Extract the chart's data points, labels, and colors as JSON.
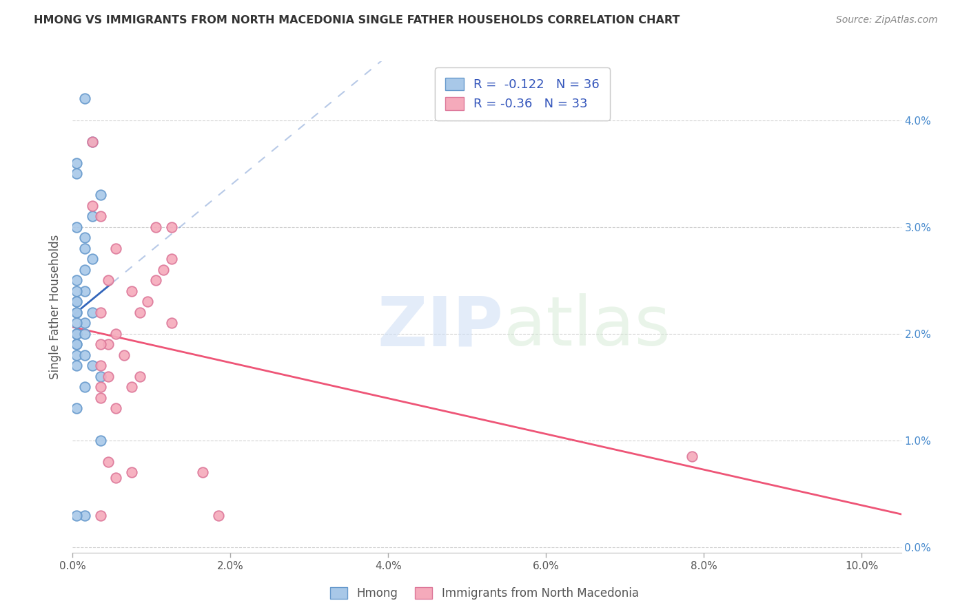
{
  "title": "HMONG VS IMMIGRANTS FROM NORTH MACEDONIA SINGLE FATHER HOUSEHOLDS CORRELATION CHART",
  "source": "Source: ZipAtlas.com",
  "ylabel": "Single Father Households",
  "xlim": [
    0.0,
    0.105
  ],
  "ylim": [
    -0.0005,
    0.0455
  ],
  "yticks": [
    0.0,
    0.01,
    0.02,
    0.03,
    0.04
  ],
  "ytick_labels": [
    "0.0%",
    "1.0%",
    "2.0%",
    "3.0%",
    "4.0%"
  ],
  "xticks": [
    0.0,
    0.02,
    0.04,
    0.06,
    0.08,
    0.1
  ],
  "xtick_labels": [
    "0.0%",
    "2.0%",
    "4.0%",
    "6.0%",
    "8.0%",
    "10.0%"
  ],
  "watermark_zip": "ZIP",
  "watermark_atlas": "atlas",
  "hmong_color": "#a8c8e8",
  "hmong_edge_color": "#6699cc",
  "macedonia_color": "#f5aabb",
  "macedonia_edge_color": "#dd7799",
  "line_hmong_color": "#3366bb",
  "line_macedonia_color": "#ee5577",
  "R_hmong": -0.122,
  "N_hmong": 36,
  "R_macedonia": -0.36,
  "N_macedonia": 33,
  "hmong_x": [
    0.0015,
    0.0025,
    0.0005,
    0.0005,
    0.0035,
    0.0025,
    0.0005,
    0.0015,
    0.0015,
    0.0025,
    0.0015,
    0.0005,
    0.0015,
    0.0005,
    0.0005,
    0.0005,
    0.0005,
    0.0025,
    0.0005,
    0.0015,
    0.0005,
    0.0005,
    0.0005,
    0.0015,
    0.0005,
    0.0005,
    0.0005,
    0.0015,
    0.0025,
    0.0005,
    0.0035,
    0.0015,
    0.0005,
    0.0035,
    0.0015,
    0.0005
  ],
  "hmong_y": [
    0.042,
    0.038,
    0.036,
    0.035,
    0.033,
    0.031,
    0.03,
    0.029,
    0.028,
    0.027,
    0.026,
    0.025,
    0.024,
    0.024,
    0.023,
    0.023,
    0.022,
    0.022,
    0.022,
    0.021,
    0.021,
    0.02,
    0.02,
    0.02,
    0.019,
    0.019,
    0.018,
    0.018,
    0.017,
    0.017,
    0.016,
    0.015,
    0.013,
    0.01,
    0.003,
    0.003
  ],
  "macedonia_x": [
    0.0025,
    0.0025,
    0.0035,
    0.0105,
    0.0125,
    0.0055,
    0.0125,
    0.0115,
    0.0105,
    0.0045,
    0.0075,
    0.0095,
    0.0085,
    0.0035,
    0.0125,
    0.0055,
    0.0045,
    0.0035,
    0.0065,
    0.0035,
    0.0045,
    0.0085,
    0.0035,
    0.0075,
    0.0035,
    0.0055,
    0.0785,
    0.0045,
    0.0075,
    0.0165,
    0.0055,
    0.0185,
    0.0035
  ],
  "macedonia_y": [
    0.038,
    0.032,
    0.031,
    0.03,
    0.03,
    0.028,
    0.027,
    0.026,
    0.025,
    0.025,
    0.024,
    0.023,
    0.022,
    0.022,
    0.021,
    0.02,
    0.019,
    0.019,
    0.018,
    0.017,
    0.016,
    0.016,
    0.015,
    0.015,
    0.014,
    0.013,
    0.0085,
    0.008,
    0.007,
    0.007,
    0.0065,
    0.003,
    0.003
  ]
}
